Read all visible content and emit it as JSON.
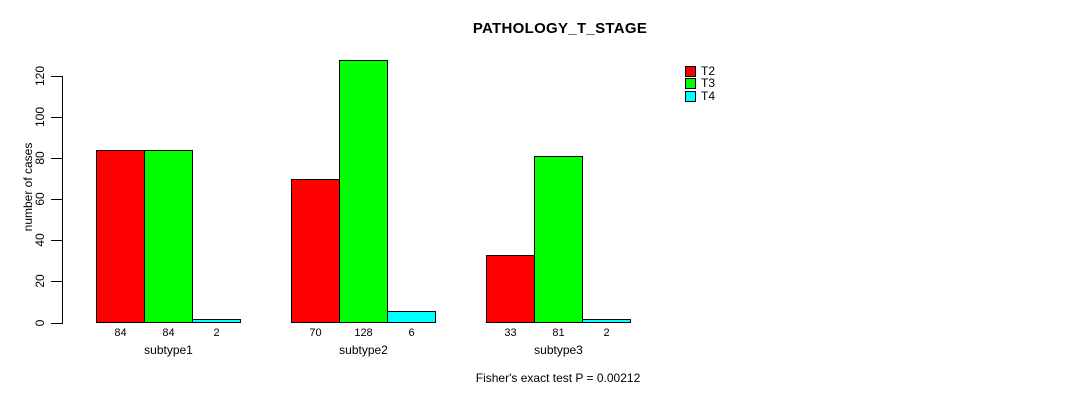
{
  "title": "PATHOLOGY_T_STAGE",
  "y_axis": {
    "label": "number of cases"
  },
  "footer": "Fisher's exact test P = 0.00212",
  "chart_data": {
    "type": "bar",
    "title": "PATHOLOGY_T_STAGE",
    "xlabel": "",
    "ylabel": "number of cases",
    "categories": [
      "subtype1",
      "subtype2",
      "subtype3"
    ],
    "series": [
      {
        "name": "T2",
        "color": "#ff0000",
        "values": [
          84,
          70,
          33
        ]
      },
      {
        "name": "T3",
        "color": "#00ff00",
        "values": [
          84,
          128,
          81
        ]
      },
      {
        "name": "T4",
        "color": "#00ffff",
        "values": [
          2,
          6,
          2
        ]
      }
    ],
    "yticks": [
      0,
      20,
      40,
      60,
      80,
      100,
      120
    ],
    "ylim": [
      0,
      128
    ],
    "grid": false,
    "bar_value_labels": true,
    "legend_position": "right",
    "annotation": "Fisher's exact test P = 0.00212"
  }
}
